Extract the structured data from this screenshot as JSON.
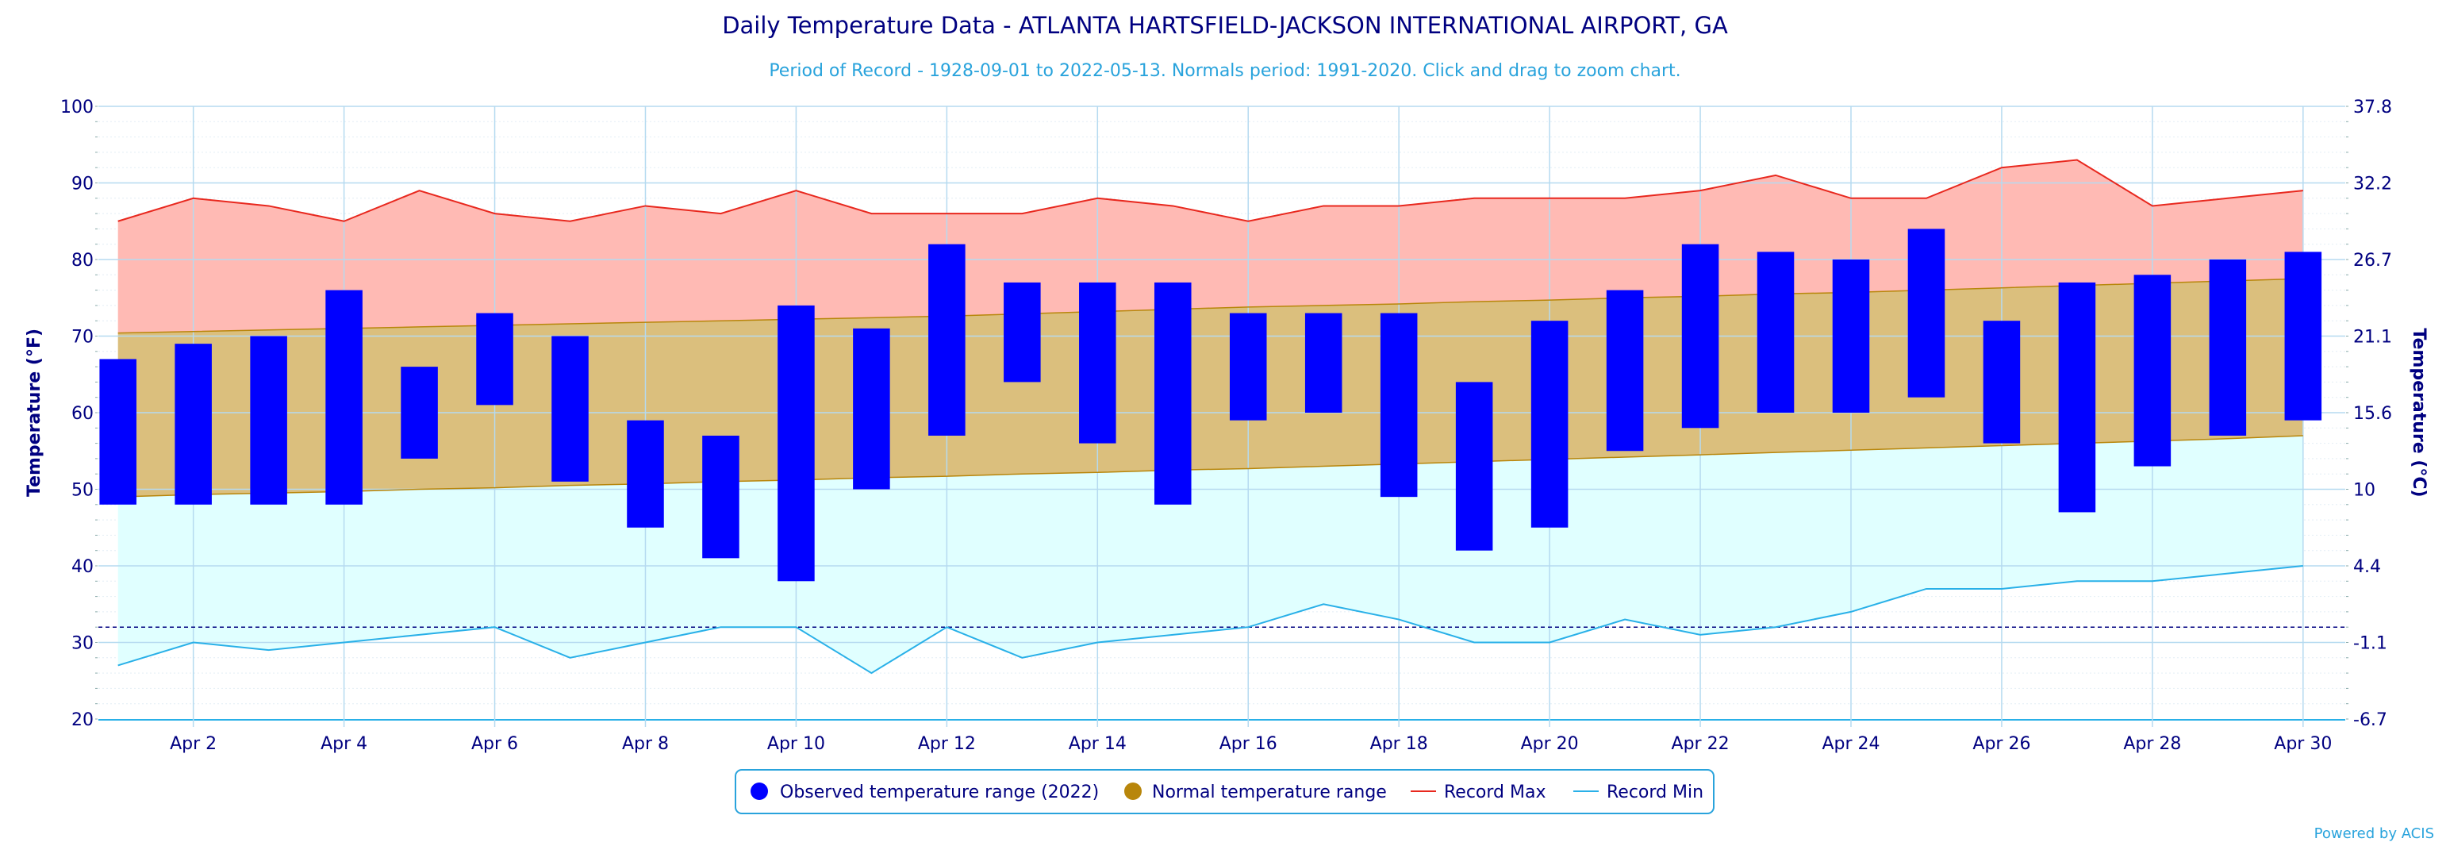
{
  "title": "Daily Temperature Data - ATLANTA HARTSFIELD-JACKSON INTERNATIONAL AIRPORT, GA",
  "subtitle": "Period of Record - 1928-09-01 to 2022-05-13. Normals period: 1991-2020. Click and drag to zoom chart.",
  "credit": "Powered by ACIS",
  "colors": {
    "title": "#000080",
    "subtitle": "#29a3dc",
    "axis_text": "#000080",
    "observed": "#0000ff",
    "normal_fill": "#dbbf7d",
    "normal_line": "#b8860b",
    "normal_legend": "#b8860b",
    "record_max_fill": "#ffbab4",
    "record_max_line": "#e8281e",
    "record_min_fill": "#e0ffff",
    "record_min_line": "#29b0e8",
    "freeze_line": "#000080",
    "grid": "#b5daf0"
  },
  "chart_data": {
    "type": "bar",
    "title": "Daily Temperature Data - ATLANTA HARTSFIELD-JACKSON INTERNATIONAL AIRPORT, GA",
    "subtitle": "Period of Record - 1928-09-01 to 2022-05-13. Normals period: 1991-2020. Click and drag to zoom chart.",
    "ylabel": "Temperature (°F)",
    "y2label": "Temperature (°C)",
    "ylim": [
      20,
      100
    ],
    "xlim": [
      1,
      30
    ],
    "yticks": [
      20,
      30,
      40,
      50,
      60,
      70,
      80,
      90,
      100
    ],
    "y2ticks": [
      "-6.7",
      "-1.1",
      "4.4",
      "10",
      "15.6",
      "21.1",
      "26.7",
      "32.2",
      "37.8"
    ],
    "xticks": [
      {
        "day": 2,
        "label": "Apr 2"
      },
      {
        "day": 4,
        "label": "Apr 4"
      },
      {
        "day": 6,
        "label": "Apr 6"
      },
      {
        "day": 8,
        "label": "Apr 8"
      },
      {
        "day": 10,
        "label": "Apr 10"
      },
      {
        "day": 12,
        "label": "Apr 12"
      },
      {
        "day": 14,
        "label": "Apr 14"
      },
      {
        "day": 16,
        "label": "Apr 16"
      },
      {
        "day": 18,
        "label": "Apr 18"
      },
      {
        "day": 20,
        "label": "Apr 20"
      },
      {
        "day": 22,
        "label": "Apr 22"
      },
      {
        "day": 24,
        "label": "Apr 24"
      },
      {
        "day": 26,
        "label": "Apr 26"
      },
      {
        "day": 28,
        "label": "Apr 28"
      },
      {
        "day": 30,
        "label": "Apr 30"
      }
    ],
    "grid": true,
    "legend_position": "bottom-center",
    "freeze_line": 32,
    "days": [
      1,
      2,
      3,
      4,
      5,
      6,
      7,
      8,
      9,
      10,
      11,
      12,
      13,
      14,
      15,
      16,
      17,
      18,
      19,
      20,
      21,
      22,
      23,
      24,
      25,
      26,
      27,
      28,
      29,
      30
    ],
    "series": [
      {
        "name": "Observed temperature range (2022)",
        "type": "columnrange",
        "low": [
          48,
          48,
          48,
          48,
          54,
          61,
          51,
          45,
          41,
          38,
          50,
          57,
          64,
          56,
          48,
          59,
          60,
          49,
          42,
          45,
          55,
          58,
          60,
          60,
          62,
          56,
          47,
          53,
          57,
          59
        ],
        "high": [
          67,
          69,
          70,
          76,
          66,
          73,
          70,
          59,
          57,
          74,
          71,
          82,
          77,
          77,
          77,
          73,
          73,
          73,
          64,
          72,
          76,
          82,
          81,
          80,
          84,
          72,
          77,
          78,
          80,
          81
        ]
      },
      {
        "name": "Normal temperature range",
        "type": "arearange",
        "low": [
          49,
          49.3,
          49.5,
          49.7,
          50,
          50.2,
          50.5,
          50.7,
          51,
          51.2,
          51.5,
          51.7,
          52,
          52.2,
          52.5,
          52.7,
          53,
          53.3,
          53.6,
          53.9,
          54.2,
          54.5,
          54.8,
          55.1,
          55.4,
          55.7,
          56,
          56.3,
          56.6,
          57
        ],
        "high": [
          70.4,
          70.6,
          70.8,
          71,
          71.2,
          71.4,
          71.6,
          71.8,
          72,
          72.2,
          72.4,
          72.6,
          72.9,
          73.2,
          73.5,
          73.8,
          74,
          74.2,
          74.5,
          74.7,
          75,
          75.2,
          75.5,
          75.7,
          76,
          76.3,
          76.6,
          76.9,
          77.2,
          77.5
        ]
      },
      {
        "name": "Record Max",
        "type": "line",
        "values": [
          85,
          88,
          87,
          85,
          89,
          86,
          85,
          87,
          86,
          89,
          86,
          86,
          86,
          88,
          87,
          85,
          87,
          87,
          88,
          88,
          88,
          89,
          91,
          88,
          88,
          92,
          93,
          87,
          88,
          89
        ]
      },
      {
        "name": "Record Min",
        "type": "line",
        "values": [
          27,
          30,
          29,
          30,
          31,
          32,
          28,
          30,
          32,
          32,
          26,
          32,
          28,
          30,
          31,
          32,
          35,
          33,
          30,
          30,
          33,
          31,
          32,
          34,
          37,
          37,
          38,
          38,
          39,
          40
        ]
      }
    ]
  },
  "legend": {
    "observed": "Observed temperature range (2022)",
    "normal": "Normal temperature range",
    "record_max": "Record Max",
    "record_min": "Record Min"
  }
}
